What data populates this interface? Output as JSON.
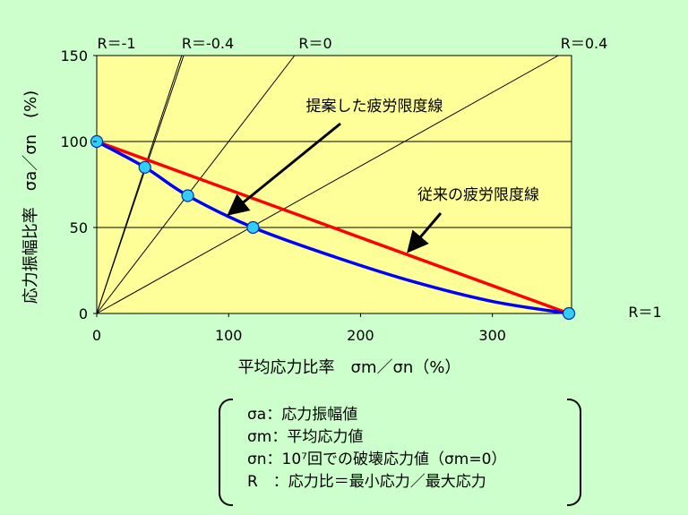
{
  "chart_data": {
    "type": "line",
    "xlabel": "平均応力比率　σm／σn（%）",
    "ylabel": "応力振幅比率　σa／σn　(%)",
    "xlim": [
      0,
      360
    ],
    "ylim": [
      0,
      150
    ],
    "x_ticks": [
      "0",
      "100",
      "200",
      "300"
    ],
    "y_ticks": [
      "0",
      "50",
      "100",
      "150"
    ],
    "gridlines_y": [
      50,
      100
    ],
    "series": [
      {
        "name": "従来の疲労限度線",
        "color": "#ff0000",
        "x": [
          0,
          358
        ],
        "y": [
          100,
          0
        ]
      },
      {
        "name": "提案した疲労限度線",
        "color": "#0000ff",
        "x": [
          0,
          36.5,
          69,
          118.5,
          180,
          240,
          300,
          358
        ],
        "y": [
          100,
          85,
          68.5,
          50,
          33,
          18.5,
          7,
          0
        ]
      }
    ],
    "points": [
      {
        "x": 0,
        "y": 100
      },
      {
        "x": 36.5,
        "y": 85
      },
      {
        "x": 69,
        "y": 68.5
      },
      {
        "x": 118.5,
        "y": 50
      },
      {
        "x": 358,
        "y": 0
      }
    ],
    "ratio_lines": [
      {
        "label": "R＝-1",
        "slope": null
      },
      {
        "label": "R＝-0.4",
        "slope": 2.33
      },
      {
        "label": "R＝0",
        "slope": 1.0
      },
      {
        "label": "R＝0.4",
        "slope": 0.4286
      },
      {
        "label": "R＝1",
        "slope": 0
      }
    ],
    "annotations": [
      {
        "text": "提案した疲労限度線"
      },
      {
        "text": "従来の疲労限度線"
      }
    ]
  },
  "legend": {
    "lines": [
      {
        "sym": "σa",
        "sep": "：",
        "desc": "応力振幅値"
      },
      {
        "sym": "σm",
        "sep": "：",
        "desc": "平均応力値"
      },
      {
        "sym": "σn",
        "sep": "：",
        "desc": "10⁷回での破壊応力値（σm=0）"
      },
      {
        "sym": "R",
        "sep": "　：",
        "desc": "応力比＝最小応力／最大応力"
      }
    ]
  }
}
